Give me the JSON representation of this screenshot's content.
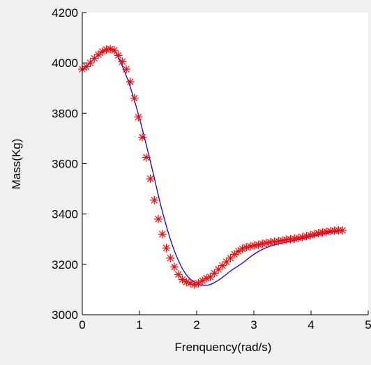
{
  "chart_data": {
    "type": "line",
    "xlabel": "Frenquency(rad/s)",
    "ylabel": "Mass(Kg)",
    "xlim": [
      0,
      5
    ],
    "ylim": [
      3000,
      4200
    ],
    "xticks": [
      0,
      1,
      2,
      3,
      4,
      5
    ],
    "yticks": [
      3000,
      3200,
      3400,
      3600,
      3800,
      4000,
      4200
    ],
    "grid": false,
    "colors": {
      "line": "#0000ff",
      "marker": "#ff0000",
      "axes_bg": "#ffffff",
      "figure_bg": "#f0f0f0"
    },
    "line_curve": {
      "x": [
        0,
        0.2,
        0.4,
        0.5,
        0.6,
        0.8,
        1.0,
        1.2,
        1.4,
        1.6,
        1.8,
        2.0,
        2.2,
        2.4,
        2.6,
        2.8,
        3.0,
        3.2,
        3.4,
        3.6,
        3.8,
        4.0,
        4.2,
        4.4,
        4.55
      ],
      "y": [
        3970,
        4015,
        4050,
        4055,
        4035,
        3930,
        3780,
        3600,
        3410,
        3260,
        3165,
        3125,
        3118,
        3140,
        3175,
        3205,
        3240,
        3265,
        3280,
        3290,
        3300,
        3310,
        3320,
        3330,
        3335
      ]
    },
    "series": [
      {
        "marker": "*",
        "x": [
          0.0,
          0.07,
          0.14,
          0.21,
          0.28,
          0.35,
          0.42,
          0.49,
          0.56,
          0.63,
          0.7,
          0.77,
          0.84,
          0.91,
          0.98,
          1.05,
          1.12,
          1.19,
          1.26,
          1.33,
          1.4,
          1.47,
          1.54,
          1.61,
          1.68,
          1.75,
          1.82,
          1.89,
          1.96,
          2.03,
          2.1,
          2.17,
          2.24,
          2.31,
          2.38,
          2.45,
          2.52,
          2.59,
          2.66,
          2.73,
          2.8,
          2.87,
          2.94,
          3.01,
          3.08,
          3.15,
          3.22,
          3.29,
          3.36,
          3.43,
          3.5,
          3.57,
          3.64,
          3.71,
          3.78,
          3.85,
          3.92,
          3.99,
          4.06,
          4.13,
          4.2,
          4.27,
          4.34,
          4.41,
          4.48,
          4.55
        ],
        "y": [
          3975,
          3985,
          4000,
          4018,
          4033,
          4045,
          4053,
          4055,
          4050,
          4030,
          4005,
          3975,
          3925,
          3860,
          3785,
          3705,
          3625,
          3540,
          3455,
          3380,
          3320,
          3265,
          3225,
          3190,
          3160,
          3140,
          3130,
          3125,
          3120,
          3125,
          3135,
          3145,
          3150,
          3165,
          3180,
          3195,
          3210,
          3225,
          3240,
          3252,
          3262,
          3268,
          3272,
          3275,
          3278,
          3282,
          3285,
          3288,
          3290,
          3292,
          3295,
          3298,
          3300,
          3302,
          3305,
          3308,
          3312,
          3316,
          3320,
          3324,
          3327,
          3330,
          3332,
          3334,
          3335,
          3335
        ]
      }
    ]
  }
}
